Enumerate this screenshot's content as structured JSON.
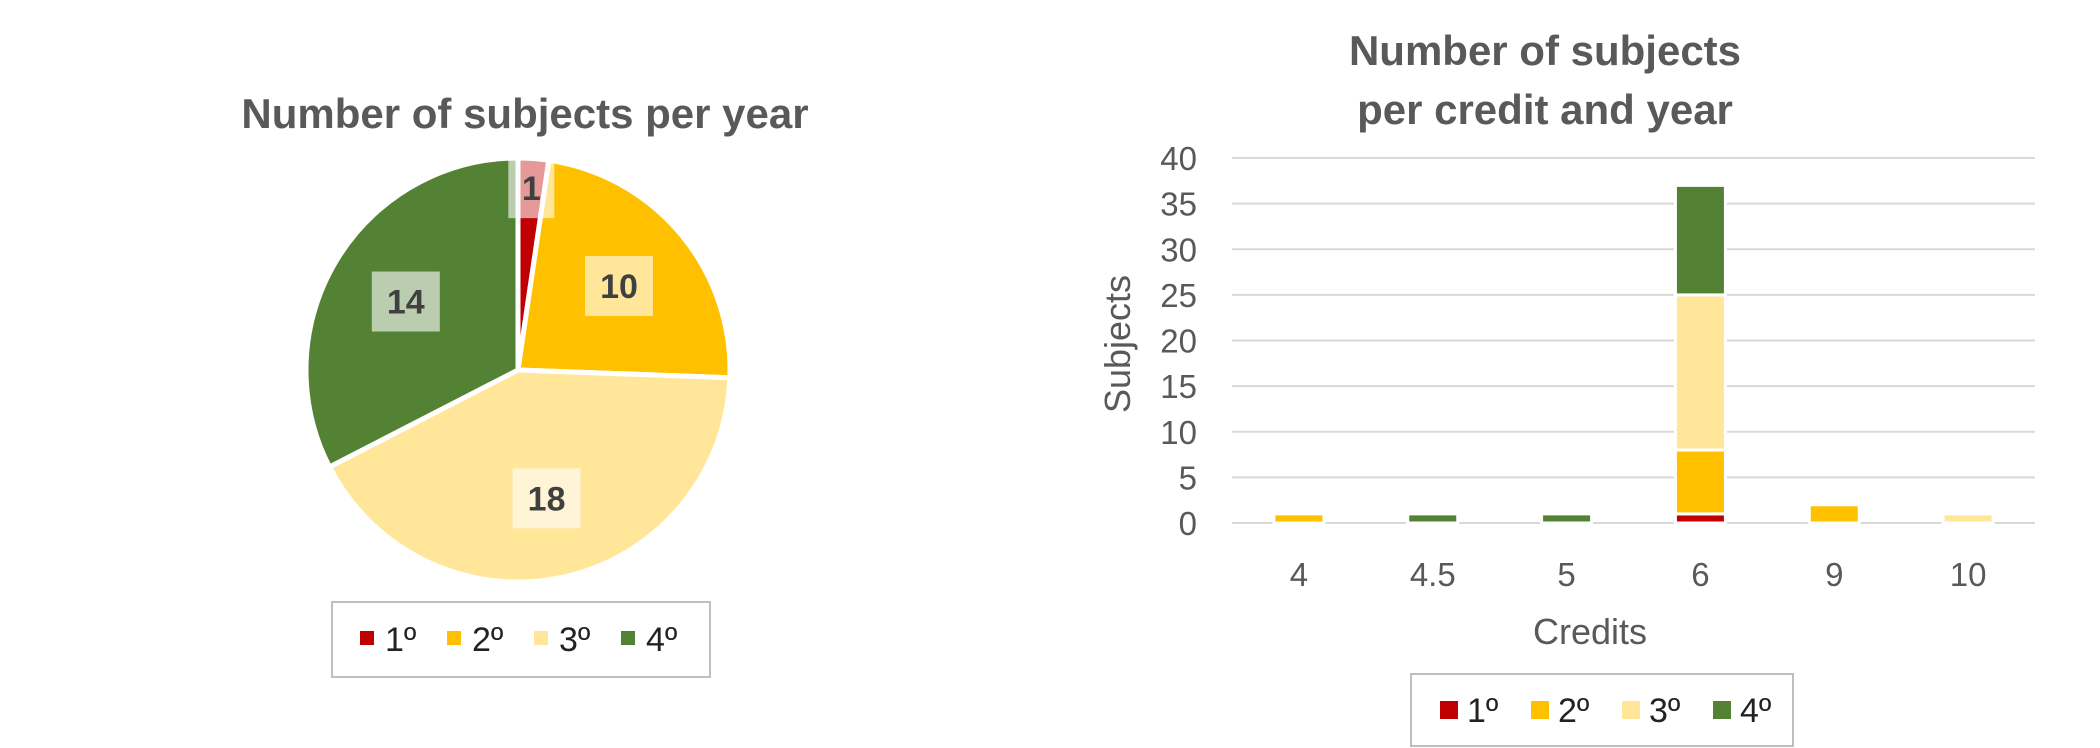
{
  "chart_data": [
    {
      "type": "pie",
      "title": "Number of subjects per year",
      "categories": [
        "1º",
        "2º",
        "3º",
        "4º"
      ],
      "values": [
        1,
        10,
        18,
        14
      ],
      "data_labels": [
        "1",
        "10",
        "18",
        "14"
      ],
      "colors": [
        "#C00000",
        "#FFC000",
        "#FFE699",
        "#548235"
      ],
      "legend_position": "bottom"
    },
    {
      "type": "bar",
      "stacked": true,
      "title": "Number of subjects",
      "subtitle": "per credit and year",
      "categories": [
        "4",
        "4.5",
        "5",
        "6",
        "9",
        "10"
      ],
      "series": [
        {
          "name": "1º",
          "color": "#C00000",
          "values": [
            0,
            0,
            0,
            1,
            0,
            0
          ]
        },
        {
          "name": "2º",
          "color": "#FFC000",
          "values": [
            1,
            0,
            0,
            7,
            2,
            0
          ]
        },
        {
          "name": "3º",
          "color": "#FFE699",
          "values": [
            0,
            0,
            0,
            17,
            0,
            1
          ]
        },
        {
          "name": "4º",
          "color": "#548235",
          "values": [
            0,
            1,
            1,
            12,
            0,
            0
          ]
        }
      ],
      "xlabel": "Credits",
      "ylabel": "Subjects",
      "ylim": [
        0,
        40
      ],
      "yticks": [
        "0",
        "5",
        "10",
        "15",
        "20",
        "25",
        "30",
        "35",
        "40"
      ],
      "grid": true,
      "legend_position": "bottom"
    }
  ]
}
